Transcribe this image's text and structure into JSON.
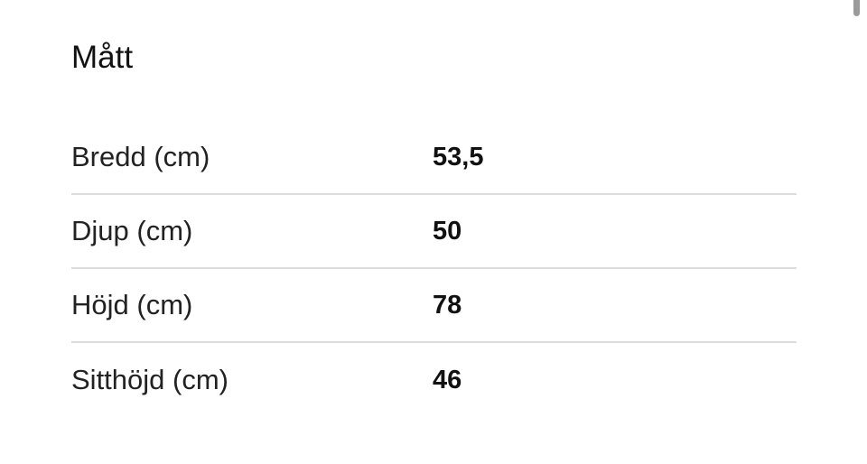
{
  "section": {
    "title": "Mått"
  },
  "rows": [
    {
      "label": "Bredd (cm)",
      "value": "53,5"
    },
    {
      "label": "Djup (cm)",
      "value": "50"
    },
    {
      "label": "Höjd (cm)",
      "value": "78"
    },
    {
      "label": "Sitthöjd (cm)",
      "value": "46"
    }
  ]
}
